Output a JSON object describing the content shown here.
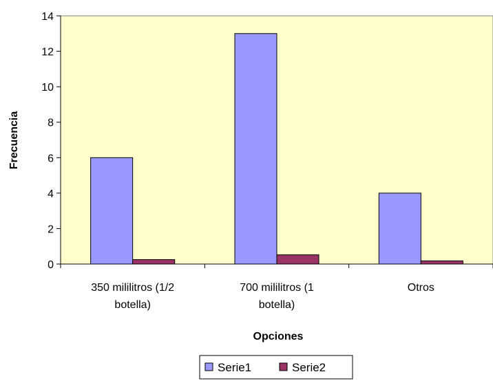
{
  "chart_data": {
    "type": "bar",
    "categories": [
      [
        "350 mililitros (1/2",
        "botella)"
      ],
      [
        "700 mililitros (1",
        "botella)"
      ],
      [
        "Otros"
      ]
    ],
    "series": [
      {
        "name": "Serie1",
        "values": [
          6,
          13,
          4
        ],
        "color": "#9999ff"
      },
      {
        "name": "Serie2",
        "values": [
          0.25,
          0.52,
          0.18
        ],
        "color": "#993366"
      }
    ],
    "xlabel": "Opciones",
    "ylabel": "Frecuencia",
    "ylim": [
      0,
      14
    ],
    "yticks": [
      0,
      2,
      4,
      6,
      8,
      10,
      12,
      14
    ],
    "plot_background": "#ffffcc",
    "grid": false,
    "legend_position": "bottom-center"
  }
}
